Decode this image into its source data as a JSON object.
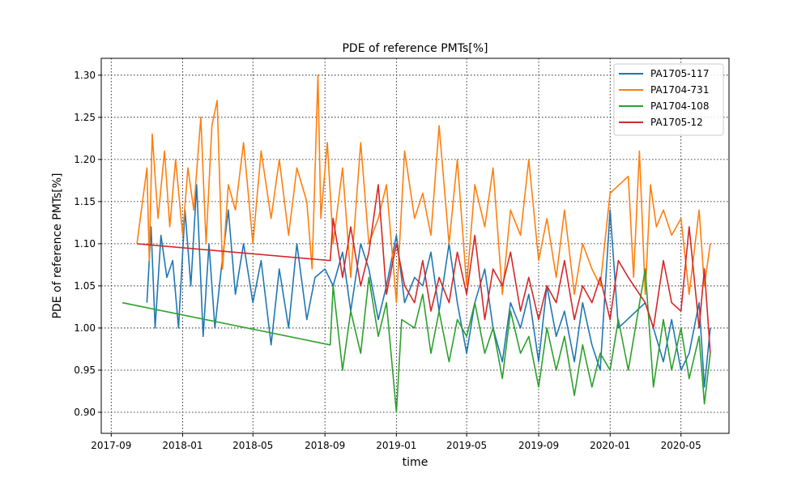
{
  "chart_data": {
    "type": "line",
    "title": "PDE of reference PMTs[%]",
    "xlabel": "time",
    "ylabel": "PDE of reference PMTs[%]",
    "x_ticks": [
      "2017-09",
      "2018-01",
      "2018-05",
      "2018-09",
      "2019-01",
      "2019-05",
      "2019-09",
      "2020-01",
      "2020-05"
    ],
    "y_ticks": [
      "0.90",
      "0.95",
      "1.00",
      "1.05",
      "1.10",
      "1.15",
      "1.20",
      "1.25",
      "1.30"
    ],
    "x_range": [
      "2017-08-15",
      "2020-07-22"
    ],
    "y_range": [
      0.875,
      1.32
    ],
    "grid": true,
    "legend_position": "top-right",
    "series": [
      {
        "name": "PA1705-117",
        "color": "#1f77b4",
        "points": [
          [
            "2017-11-01",
            1.03
          ],
          [
            "2017-11-08",
            1.12
          ],
          [
            "2017-11-15",
            1.0
          ],
          [
            "2017-11-25",
            1.11
          ],
          [
            "2017-12-05",
            1.06
          ],
          [
            "2017-12-15",
            1.08
          ],
          [
            "2017-12-25",
            1.0
          ],
          [
            "2018-01-05",
            1.14
          ],
          [
            "2018-01-15",
            1.05
          ],
          [
            "2018-01-25",
            1.17
          ],
          [
            "2018-02-05",
            0.99
          ],
          [
            "2018-02-15",
            1.1
          ],
          [
            "2018-02-25",
            1.0
          ],
          [
            "2018-03-08",
            1.07
          ],
          [
            "2018-03-20",
            1.14
          ],
          [
            "2018-04-01",
            1.04
          ],
          [
            "2018-04-15",
            1.1
          ],
          [
            "2018-05-01",
            1.03
          ],
          [
            "2018-05-15",
            1.08
          ],
          [
            "2018-06-01",
            0.98
          ],
          [
            "2018-06-15",
            1.07
          ],
          [
            "2018-07-01",
            1.0
          ],
          [
            "2018-07-15",
            1.1
          ],
          [
            "2018-08-01",
            1.01
          ],
          [
            "2018-08-15",
            1.06
          ],
          [
            "2018-09-01",
            1.07
          ],
          [
            "2018-09-15",
            1.05
          ],
          [
            "2018-10-01",
            1.09
          ],
          [
            "2018-10-15",
            1.02
          ],
          [
            "2018-11-01",
            1.1
          ],
          [
            "2018-11-15",
            1.07
          ],
          [
            "2018-12-01",
            1.01
          ],
          [
            "2018-12-15",
            1.05
          ],
          [
            "2019-01-01",
            1.11
          ],
          [
            "2019-01-15",
            1.03
          ],
          [
            "2019-02-01",
            1.06
          ],
          [
            "2019-02-15",
            1.05
          ],
          [
            "2019-03-01",
            1.09
          ],
          [
            "2019-03-15",
            1.02
          ],
          [
            "2019-04-01",
            1.1
          ],
          [
            "2019-04-15",
            1.03
          ],
          [
            "2019-05-01",
            0.97
          ],
          [
            "2019-05-15",
            1.03
          ],
          [
            "2019-06-01",
            1.07
          ],
          [
            "2019-06-15",
            1.0
          ],
          [
            "2019-07-01",
            0.96
          ],
          [
            "2019-07-15",
            1.03
          ],
          [
            "2019-08-01",
            1.0
          ],
          [
            "2019-08-15",
            1.04
          ],
          [
            "2019-09-01",
            0.96
          ],
          [
            "2019-09-15",
            1.05
          ],
          [
            "2019-10-01",
            0.99
          ],
          [
            "2019-10-15",
            1.02
          ],
          [
            "2019-11-01",
            0.96
          ],
          [
            "2019-11-15",
            1.03
          ],
          [
            "2019-12-01",
            0.98
          ],
          [
            "2019-12-15",
            0.95
          ],
          [
            "2020-01-01",
            1.14
          ],
          [
            "2020-01-15",
            1.0
          ],
          [
            "2020-03-01",
            1.03
          ],
          [
            "2020-03-15",
            1.0
          ],
          [
            "2020-04-01",
            0.96
          ],
          [
            "2020-04-15",
            1.01
          ],
          [
            "2020-05-01",
            0.95
          ],
          [
            "2020-05-15",
            0.97
          ],
          [
            "2020-06-01",
            1.03
          ],
          [
            "2020-06-10",
            0.93
          ],
          [
            "2020-06-20",
            1.0
          ]
        ]
      },
      {
        "name": "PA1704-731",
        "color": "#ff7f0e",
        "points": [
          [
            "2017-10-15",
            1.1
          ],
          [
            "2017-11-01",
            1.19
          ],
          [
            "2017-11-05",
            1.08
          ],
          [
            "2017-11-10",
            1.23
          ],
          [
            "2017-11-20",
            1.13
          ],
          [
            "2017-12-01",
            1.21
          ],
          [
            "2017-12-10",
            1.12
          ],
          [
            "2017-12-20",
            1.2
          ],
          [
            "2018-01-01",
            1.11
          ],
          [
            "2018-01-10",
            1.19
          ],
          [
            "2018-01-20",
            1.14
          ],
          [
            "2018-02-01",
            1.25
          ],
          [
            "2018-02-10",
            1.1
          ],
          [
            "2018-02-20",
            1.24
          ],
          [
            "2018-03-01",
            1.27
          ],
          [
            "2018-03-10",
            1.07
          ],
          [
            "2018-03-20",
            1.17
          ],
          [
            "2018-04-01",
            1.14
          ],
          [
            "2018-04-15",
            1.22
          ],
          [
            "2018-05-01",
            1.1
          ],
          [
            "2018-05-15",
            1.21
          ],
          [
            "2018-06-01",
            1.13
          ],
          [
            "2018-06-15",
            1.2
          ],
          [
            "2018-07-01",
            1.11
          ],
          [
            "2018-07-15",
            1.19
          ],
          [
            "2018-08-01",
            1.15
          ],
          [
            "2018-08-10",
            1.07
          ],
          [
            "2018-08-20",
            1.3
          ],
          [
            "2018-08-25",
            1.13
          ],
          [
            "2018-09-05",
            1.22
          ],
          [
            "2018-09-15",
            1.1
          ],
          [
            "2018-10-01",
            1.19
          ],
          [
            "2018-10-15",
            1.06
          ],
          [
            "2018-11-01",
            1.22
          ],
          [
            "2018-11-15",
            1.1
          ],
          [
            "2018-12-01",
            1.13
          ],
          [
            "2018-12-15",
            1.17
          ],
          [
            "2019-01-01",
            1.03
          ],
          [
            "2019-01-15",
            1.21
          ],
          [
            "2019-02-01",
            1.13
          ],
          [
            "2019-02-15",
            1.16
          ],
          [
            "2019-03-01",
            1.11
          ],
          [
            "2019-03-15",
            1.24
          ],
          [
            "2019-04-01",
            1.1
          ],
          [
            "2019-04-15",
            1.2
          ],
          [
            "2019-05-01",
            1.05
          ],
          [
            "2019-05-15",
            1.17
          ],
          [
            "2019-06-01",
            1.12
          ],
          [
            "2019-06-15",
            1.19
          ],
          [
            "2019-07-01",
            1.04
          ],
          [
            "2019-07-15",
            1.14
          ],
          [
            "2019-08-01",
            1.11
          ],
          [
            "2019-08-15",
            1.2
          ],
          [
            "2019-09-01",
            1.08
          ],
          [
            "2019-09-15",
            1.13
          ],
          [
            "2019-10-01",
            1.06
          ],
          [
            "2019-10-15",
            1.14
          ],
          [
            "2019-11-01",
            1.04
          ],
          [
            "2019-11-15",
            1.1
          ],
          [
            "2019-12-01",
            1.07
          ],
          [
            "2019-12-15",
            1.05
          ],
          [
            "2020-01-01",
            1.16
          ],
          [
            "2020-02-01",
            1.18
          ],
          [
            "2020-02-10",
            1.06
          ],
          [
            "2020-02-20",
            1.21
          ],
          [
            "2020-03-01",
            1.04
          ],
          [
            "2020-03-10",
            1.17
          ],
          [
            "2020-03-20",
            1.12
          ],
          [
            "2020-04-01",
            1.14
          ],
          [
            "2020-04-15",
            1.11
          ],
          [
            "2020-05-01",
            1.13
          ],
          [
            "2020-05-15",
            1.04
          ],
          [
            "2020-06-01",
            1.14
          ],
          [
            "2020-06-10",
            1.05
          ],
          [
            "2020-06-20",
            1.1
          ]
        ]
      },
      {
        "name": "PA1704-108",
        "color": "#2ca02c",
        "points": [
          [
            "2017-09-20",
            1.03
          ],
          [
            "2018-09-10",
            0.98
          ],
          [
            "2018-09-15",
            1.05
          ],
          [
            "2018-10-01",
            0.95
          ],
          [
            "2018-10-15",
            1.02
          ],
          [
            "2018-11-01",
            0.97
          ],
          [
            "2018-11-15",
            1.06
          ],
          [
            "2018-12-01",
            0.99
          ],
          [
            "2018-12-15",
            1.03
          ],
          [
            "2019-01-01",
            0.9
          ],
          [
            "2019-01-10",
            1.01
          ],
          [
            "2019-02-01",
            1.0
          ],
          [
            "2019-02-15",
            1.04
          ],
          [
            "2019-03-01",
            0.97
          ],
          [
            "2019-03-15",
            1.02
          ],
          [
            "2019-04-01",
            0.96
          ],
          [
            "2019-04-15",
            1.01
          ],
          [
            "2019-05-01",
            0.99
          ],
          [
            "2019-05-15",
            1.03
          ],
          [
            "2019-06-01",
            0.97
          ],
          [
            "2019-06-15",
            1.0
          ],
          [
            "2019-07-01",
            0.94
          ],
          [
            "2019-07-15",
            1.02
          ],
          [
            "2019-08-01",
            0.97
          ],
          [
            "2019-08-15",
            0.99
          ],
          [
            "2019-09-01",
            0.93
          ],
          [
            "2019-09-15",
            1.0
          ],
          [
            "2019-10-01",
            0.95
          ],
          [
            "2019-10-15",
            0.99
          ],
          [
            "2019-11-01",
            0.92
          ],
          [
            "2019-11-15",
            0.98
          ],
          [
            "2019-12-01",
            0.93
          ],
          [
            "2019-12-15",
            0.97
          ],
          [
            "2020-01-01",
            0.95
          ],
          [
            "2020-01-15",
            1.01
          ],
          [
            "2020-02-01",
            0.95
          ],
          [
            "2020-03-01",
            1.07
          ],
          [
            "2020-03-15",
            0.93
          ],
          [
            "2020-04-01",
            1.01
          ],
          [
            "2020-04-15",
            0.95
          ],
          [
            "2020-05-01",
            1.0
          ],
          [
            "2020-05-15",
            0.94
          ],
          [
            "2020-06-01",
            0.99
          ],
          [
            "2020-06-10",
            0.91
          ],
          [
            "2020-06-20",
            0.97
          ]
        ]
      },
      {
        "name": "PA1705-12",
        "color": "#d62728",
        "points": [
          [
            "2017-10-15",
            1.1
          ],
          [
            "2018-09-10",
            1.08
          ],
          [
            "2018-09-15",
            1.13
          ],
          [
            "2018-10-01",
            1.06
          ],
          [
            "2018-10-15",
            1.12
          ],
          [
            "2018-11-01",
            1.05
          ],
          [
            "2018-11-15",
            1.09
          ],
          [
            "2018-12-01",
            1.17
          ],
          [
            "2018-12-15",
            1.04
          ],
          [
            "2019-01-01",
            1.1
          ],
          [
            "2019-01-15",
            1.05
          ],
          [
            "2019-02-01",
            1.03
          ],
          [
            "2019-02-15",
            1.08
          ],
          [
            "2019-03-01",
            1.02
          ],
          [
            "2019-03-15",
            1.06
          ],
          [
            "2019-04-01",
            1.03
          ],
          [
            "2019-04-15",
            1.09
          ],
          [
            "2019-05-01",
            1.04
          ],
          [
            "2019-05-15",
            1.11
          ],
          [
            "2019-06-01",
            1.01
          ],
          [
            "2019-06-15",
            1.07
          ],
          [
            "2019-07-01",
            1.05
          ],
          [
            "2019-07-15",
            1.09
          ],
          [
            "2019-08-01",
            1.02
          ],
          [
            "2019-08-15",
            1.06
          ],
          [
            "2019-09-01",
            1.01
          ],
          [
            "2019-09-15",
            1.05
          ],
          [
            "2019-10-01",
            1.03
          ],
          [
            "2019-10-15",
            1.08
          ],
          [
            "2019-11-01",
            1.01
          ],
          [
            "2019-11-15",
            1.05
          ],
          [
            "2019-12-01",
            1.03
          ],
          [
            "2019-12-15",
            1.06
          ],
          [
            "2020-01-01",
            1.01
          ],
          [
            "2020-01-15",
            1.08
          ],
          [
            "2020-02-01",
            1.06
          ],
          [
            "2020-03-01",
            1.03
          ],
          [
            "2020-03-15",
            1.0
          ],
          [
            "2020-04-01",
            1.08
          ],
          [
            "2020-04-15",
            1.03
          ],
          [
            "2020-05-01",
            1.02
          ],
          [
            "2020-05-15",
            1.12
          ],
          [
            "2020-06-01",
            1.0
          ],
          [
            "2020-06-10",
            1.07
          ],
          [
            "2020-06-20",
            0.97
          ]
        ]
      }
    ]
  }
}
